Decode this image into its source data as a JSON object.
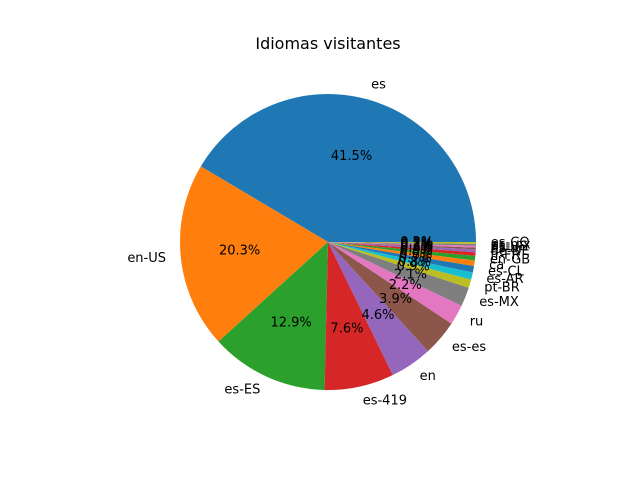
{
  "chart_data": {
    "type": "pie",
    "title": "Idiomas visitantes",
    "categories": [
      "es",
      "en-US",
      "es-ES",
      "es-419",
      "en",
      "es-es",
      "ru",
      "es-MX",
      "pt-BR",
      "es-AR",
      "es-CL",
      "ca",
      "en-GB",
      "fr-FR",
      "de-DE",
      "es-ar",
      "es-US",
      "es-mx",
      "es-CO"
    ],
    "values": [
      41.5,
      20.3,
      12.9,
      7.6,
      4.6,
      3.9,
      2.2,
      2.1,
      0.9,
      0.8,
      0.7,
      0.6,
      0.5,
      0.4,
      0.3,
      0.2,
      0.2,
      0.2,
      0.2
    ],
    "pct_labels": [
      "41.5%",
      "20.3%",
      "12.9%",
      "7.6%",
      "4.6%",
      "3.9%",
      "2.2%",
      "2.1%",
      "0.9%",
      "0.8%",
      "0.7%",
      "0.6%",
      "0.5%",
      "0.4%",
      "0.3%",
      "0.2%",
      "0.2%",
      "0.2%",
      "0.2%"
    ],
    "colors": [
      "#1f77b4",
      "#ff7f0e",
      "#2ca02c",
      "#d62728",
      "#9467bd",
      "#8c564b",
      "#e377c2",
      "#7f7f7f",
      "#bcbd22",
      "#17becf",
      "#1f77b4",
      "#ff7f0e",
      "#2ca02c",
      "#d62728",
      "#9467bd",
      "#8c564b",
      "#e377c2",
      "#7f7f7f",
      "#bcbd22"
    ],
    "start_angle": 0,
    "direction": "counterclockwise"
  }
}
